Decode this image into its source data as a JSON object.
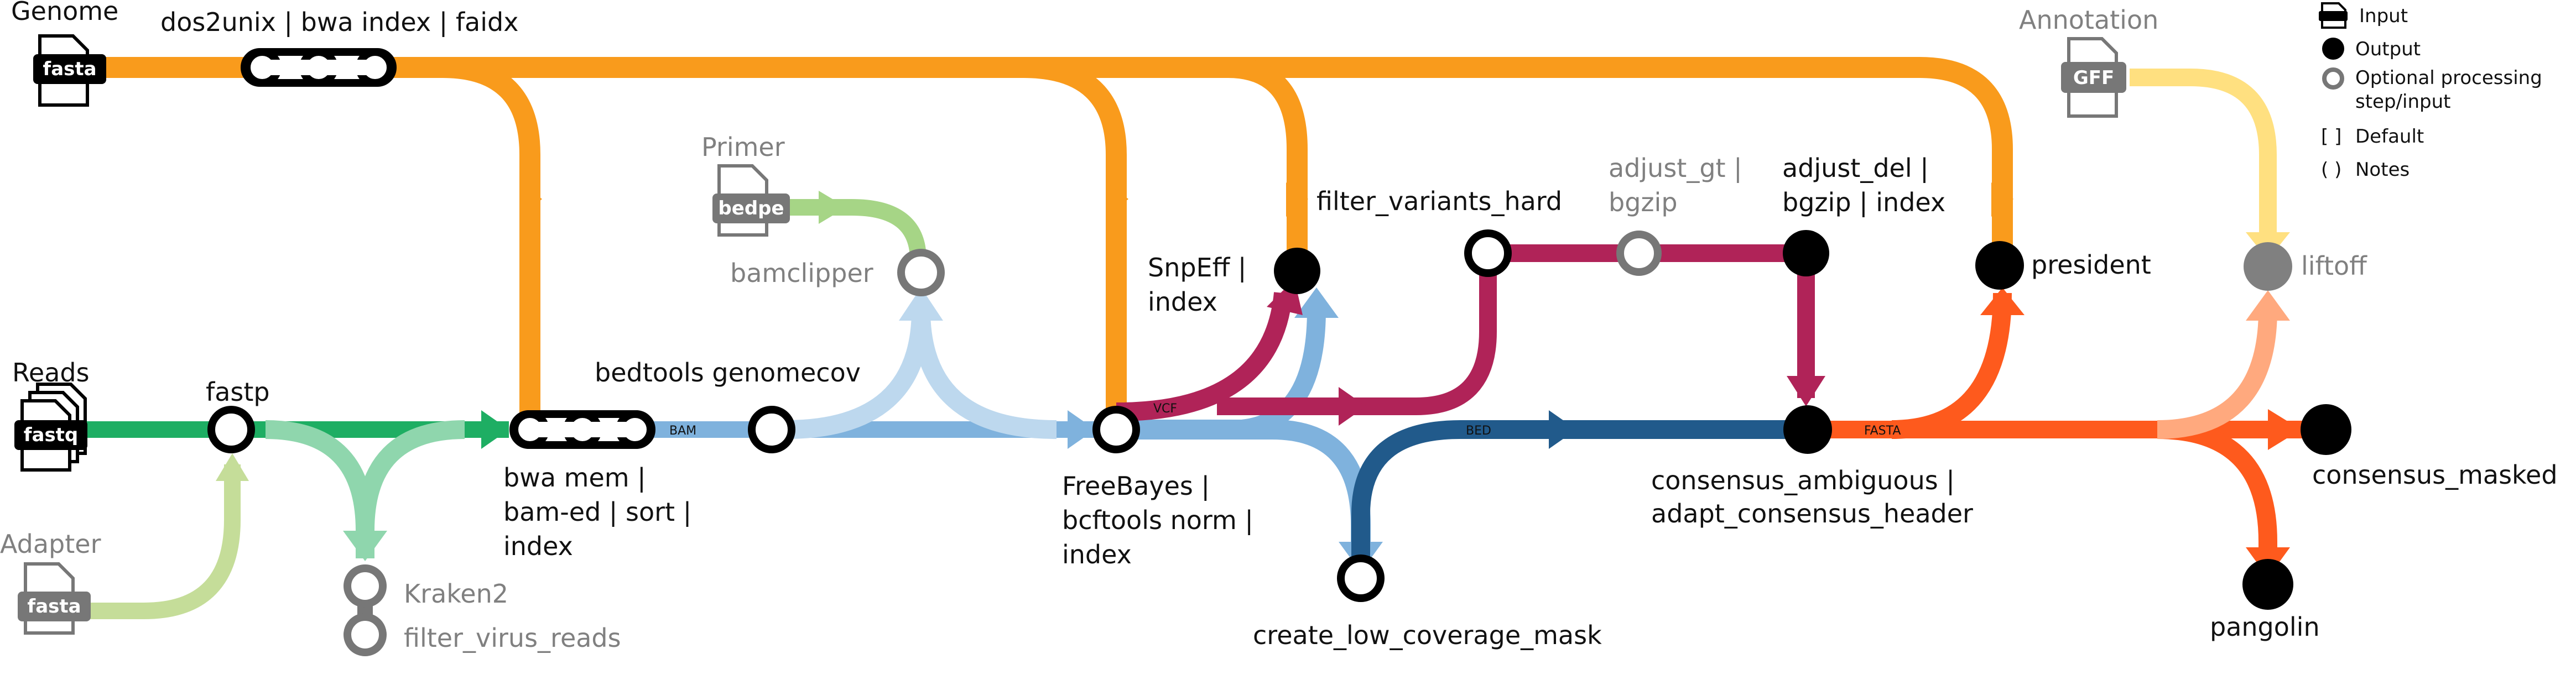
{
  "colors": {
    "genome": "#f99b1c",
    "reads": "#1eae63",
    "adapter": "#c5dd99",
    "kraken": "#8fd6ad",
    "bam": "#7fb2dd",
    "primer": "#a6d586",
    "bamclip_light": "#bdd8ee",
    "vcf": "#b02358",
    "mask": "#215a8b",
    "fasta": "#fe5a1d",
    "annotation": "#ffe080",
    "annotation_light": "#ffa97e",
    "optional": "#777777",
    "node_outline": "#000000"
  },
  "inputs": {
    "genome": {
      "title": "Genome",
      "badge": "fasta"
    },
    "reads": {
      "title": "Reads",
      "badge": "fastq"
    },
    "adapter": {
      "title": "Adapter",
      "badge": "fasta"
    },
    "primer": {
      "title": "Primer",
      "badge": "bedpe"
    },
    "annotation": {
      "title": "Annotation",
      "badge": "GFF"
    }
  },
  "steps": {
    "dos2unix": "dos2unix | bwa index | faidx",
    "fastp": "fastp",
    "kraken": [
      "Kraken2",
      "filter_virus_reads"
    ],
    "bwa": [
      "bwa mem |",
      "bam-ed | sort |",
      "index"
    ],
    "genomecov": "bedtools genomecov",
    "bamclipper": "bamclipper",
    "freebayes": [
      "FreeBayes |",
      "bcftools norm |",
      "index"
    ],
    "snpeff": [
      "SnpEff |",
      "index"
    ],
    "filter_variants": "filter_variants_hard",
    "adjust_gt": [
      "adjust_gt |",
      "bgzip"
    ],
    "adjust_del": [
      "adjust_del |",
      "bgzip | index"
    ],
    "low_cov": "create_low_coverage_mask",
    "consensus": [
      "consensus_ambiguous |",
      "adapt_consensus_header"
    ],
    "president": "president",
    "liftoff": "liftoff",
    "consensus_masked": "consensus_masked",
    "pangolin": "pangolin"
  },
  "edge_labels": {
    "bam": "BAM",
    "vcf": "VCF",
    "bed": "BED",
    "fasta": "FASTA"
  },
  "legend": {
    "input": "Input",
    "output": "Output",
    "optional": [
      "Optional processing",
      "step/input"
    ],
    "default_symbol": "[ ]",
    "default": "Default",
    "notes_symbol": "( )",
    "notes": "Notes"
  }
}
